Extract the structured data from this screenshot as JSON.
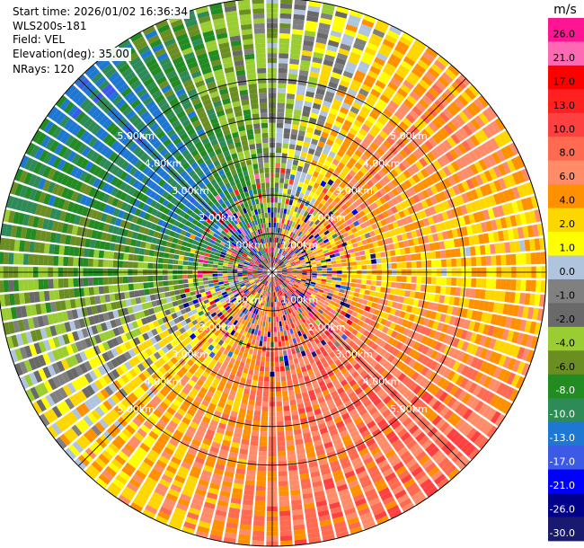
{
  "info": {
    "start_time": "Start time: 2026/01/02 16:36:34",
    "instrument": "WLS200s-181",
    "field": "Field: VEL",
    "elevation": "Elevation(deg): 35.00",
    "nrays": "NRays: 120"
  },
  "chart_data": {
    "type": "heatmap",
    "projection": "polar-ppi",
    "title": "",
    "field": "VEL",
    "n_rays": 120,
    "range_rings_km": [
      1.0,
      2.0,
      3.0,
      4.0,
      5.0
    ],
    "range_ring_labels": [
      "1.00km",
      "2.00km",
      "3.00km",
      "4.00km",
      "5.00km"
    ],
    "max_range_km": 7.1,
    "spokes_deg": [
      0,
      45,
      90,
      135,
      180,
      225,
      270,
      315
    ],
    "sector_tendency": [
      {
        "azimuth_deg": 0,
        "typical_ms": -2.5
      },
      {
        "azimuth_deg": 45,
        "typical_ms": 6.5
      },
      {
        "azimuth_deg": 90,
        "typical_ms": 3.5
      },
      {
        "azimuth_deg": 135,
        "typical_ms": 8.5
      },
      {
        "azimuth_deg": 180,
        "typical_ms": 7.5
      },
      {
        "azimuth_deg": 225,
        "typical_ms": 3.5
      },
      {
        "azimuth_deg": 270,
        "typical_ms": -5.0
      },
      {
        "azimuth_deg": 315,
        "typical_ms": -11.0
      }
    ]
  },
  "colorbar": {
    "unit": "m/s",
    "ticks": [
      "26.0",
      "21.0",
      "17.0",
      "13.0",
      "10.0",
      "8.0",
      "6.0",
      "4.0",
      "2.0",
      "1.0",
      "0.0",
      "-1.0",
      "-2.0",
      "-4.0",
      "-6.0",
      "-8.0",
      "-10.0",
      "-13.0",
      "-17.0",
      "-21.0",
      "-26.0",
      "-30.0"
    ],
    "colors": [
      "#ff1493",
      "#ff69b4",
      "#ff0000",
      "#ff2020",
      "#ff4040",
      "#ff6a50",
      "#ff8c69",
      "#ff9000",
      "#ffd700",
      "#ffff00",
      "#b0c4de",
      "#808080",
      "#696969",
      "#9acd32",
      "#6b8e23",
      "#228b22",
      "#2e8b57",
      "#1e78d2",
      "#3c5ae6",
      "#0000ff",
      "#00008b",
      "#191970"
    ]
  }
}
